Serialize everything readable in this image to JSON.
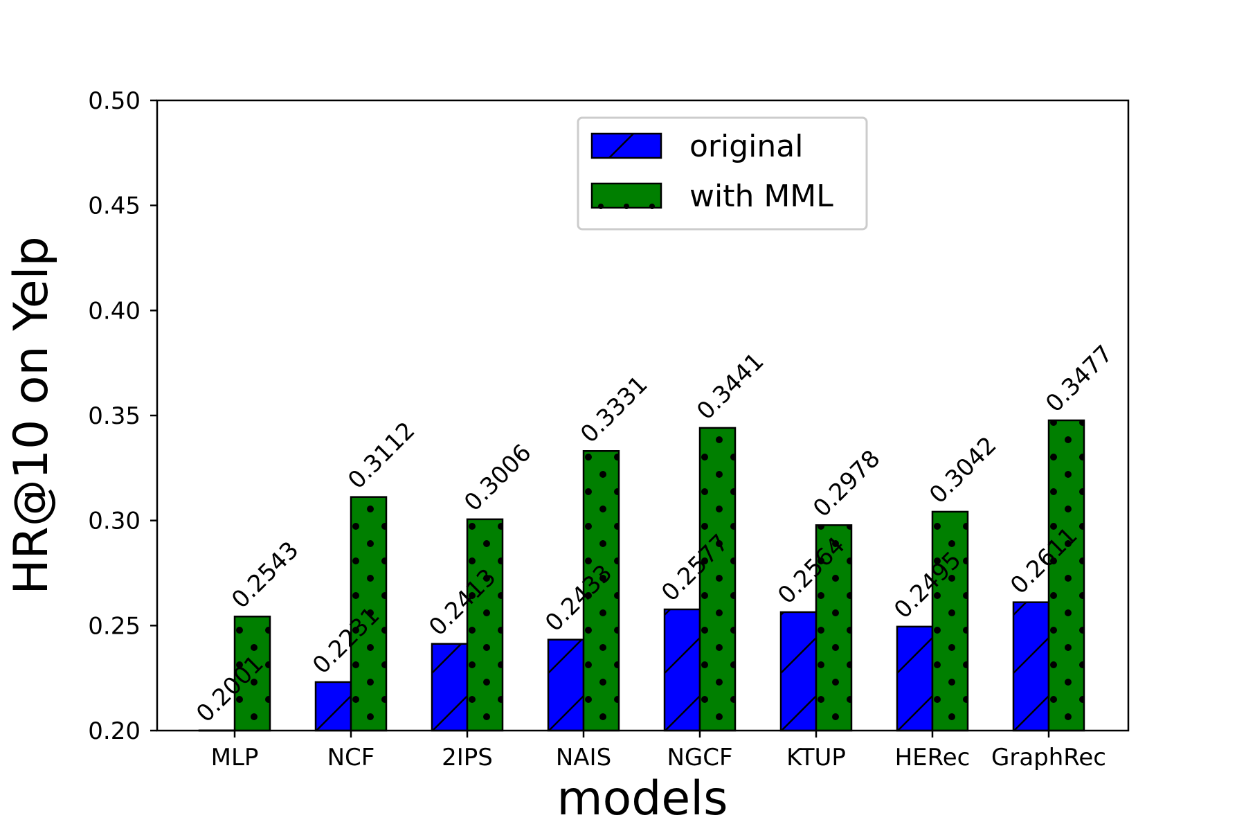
{
  "chart_data": {
    "type": "bar",
    "title": "",
    "xlabel": "models",
    "ylabel": "HR@10 on Yelp",
    "ylim": [
      0.2,
      0.5
    ],
    "yticks": [
      "0.20",
      "0.25",
      "0.30",
      "0.35",
      "0.40",
      "0.45",
      "0.50"
    ],
    "categories": [
      "MLP",
      "NCF",
      "2IPS",
      "NAIS",
      "NGCF",
      "KTUP",
      "HERec",
      "GraphRec"
    ],
    "series": [
      {
        "name": "original",
        "color": "#0000ff",
        "hatch": "diagonal",
        "values": [
          0.2001,
          0.2231,
          0.2413,
          0.2433,
          0.2577,
          0.2564,
          0.2495,
          0.2611
        ],
        "labels": [
          "0.2001",
          "0.2231",
          "0.2413",
          "0.2433",
          "0.2577",
          "0.2564",
          "0.2495",
          "0.2611"
        ]
      },
      {
        "name": "with MML",
        "color": "#007f00",
        "hatch": "dots",
        "values": [
          0.2543,
          0.3112,
          0.3006,
          0.3331,
          0.3441,
          0.2978,
          0.3042,
          0.3477
        ],
        "labels": [
          "0.2543",
          "0.3112",
          "0.3006",
          "0.3331",
          "0.3441",
          "0.2978",
          "0.3042",
          "0.3477"
        ]
      }
    ],
    "legend": {
      "placement": "top-center"
    },
    "grid": false
  }
}
